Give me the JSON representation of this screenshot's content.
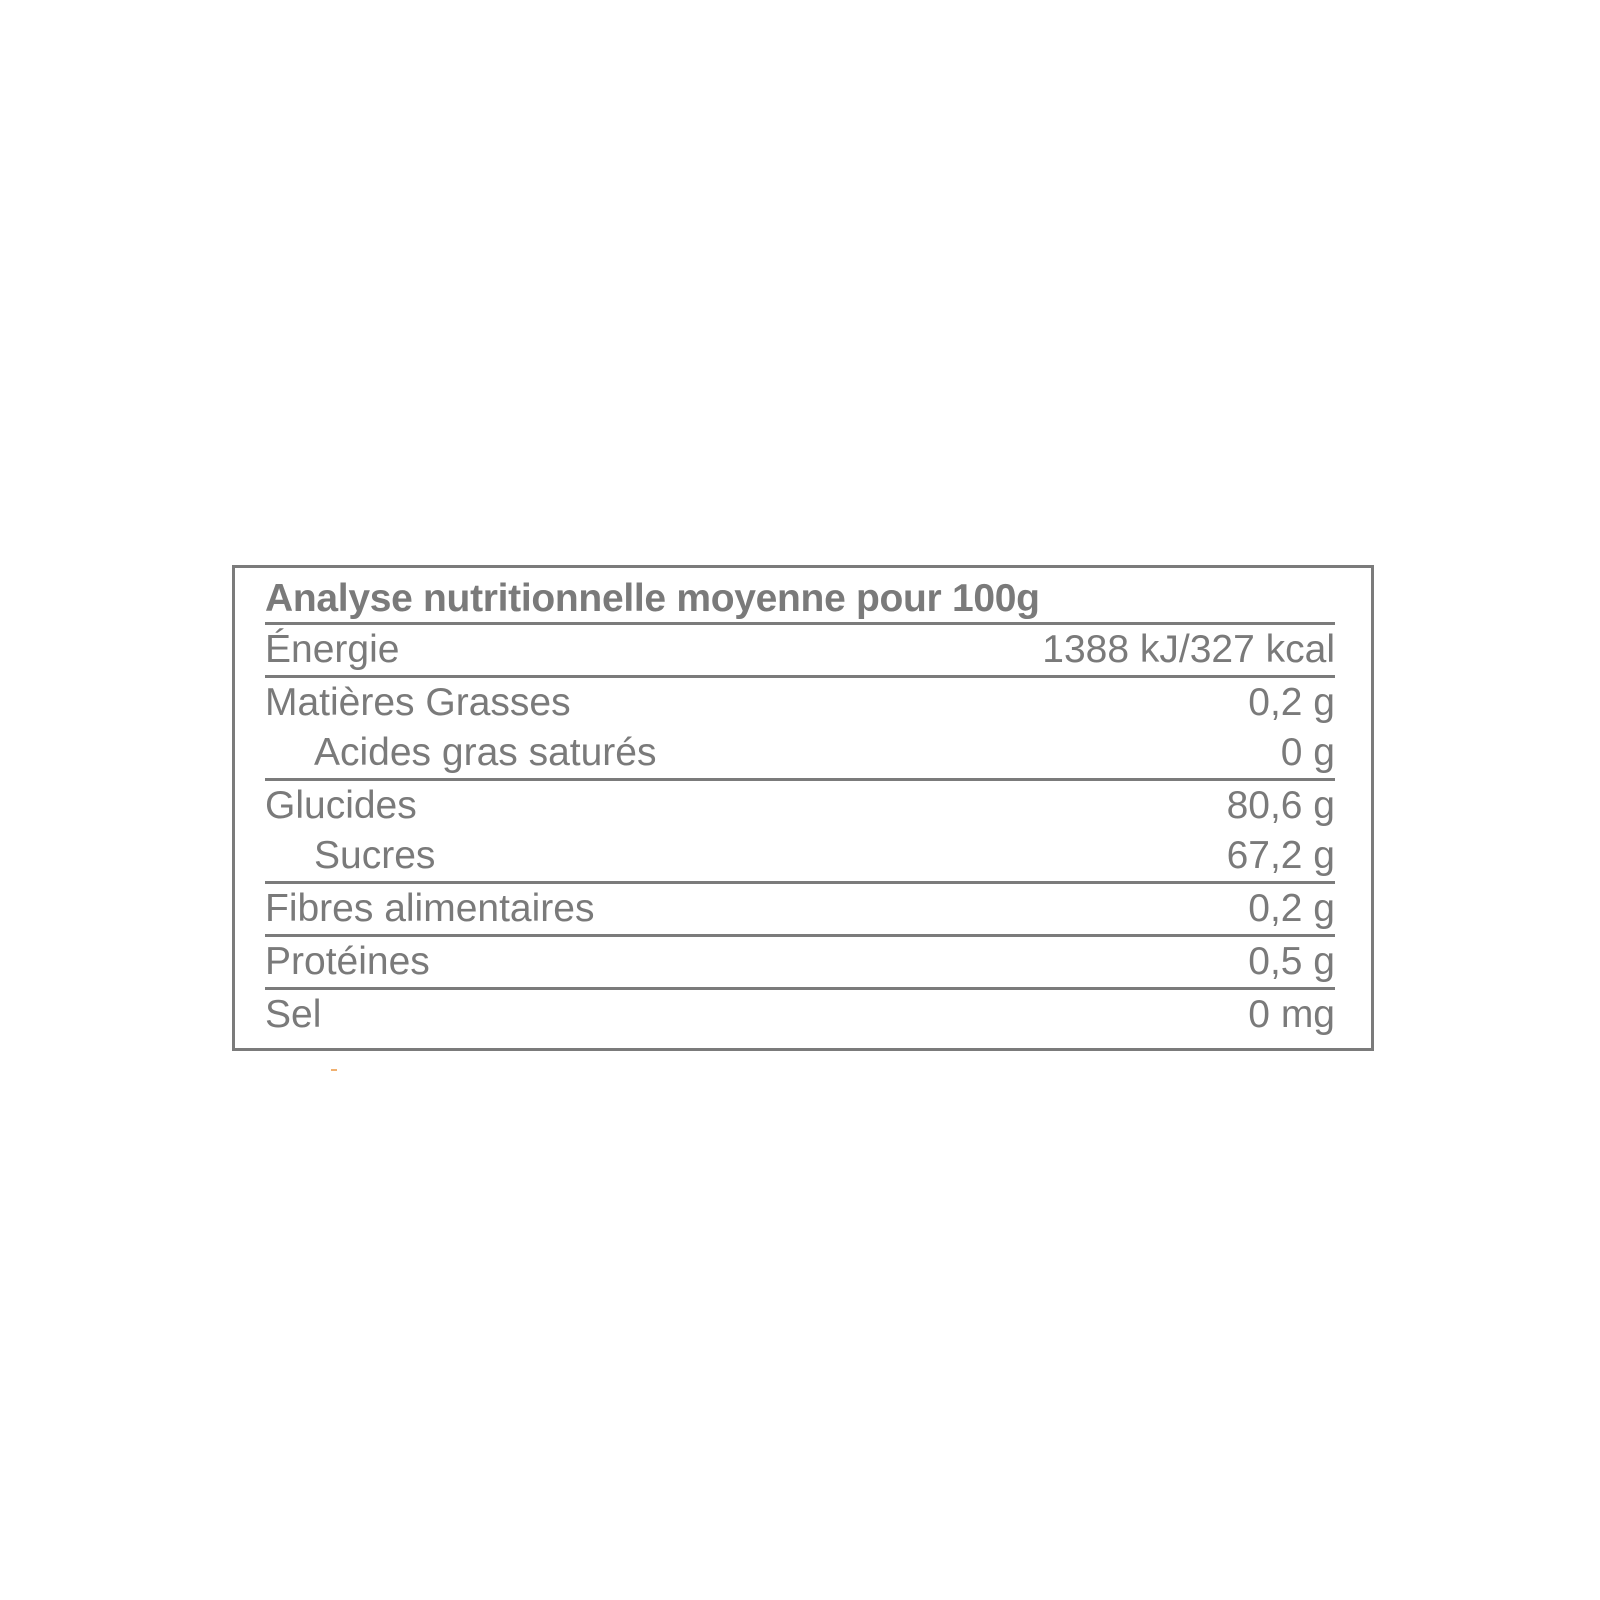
{
  "table": {
    "title": "Analyse nutritionnelle moyenne pour 100g",
    "rows": [
      {
        "label": "Énergie",
        "value": "1388 kJ/327 kcal"
      },
      {
        "label": "Matières Grasses",
        "value": "0,2 g"
      },
      {
        "label": "Acides gras saturés",
        "value": "0 g"
      },
      {
        "label": "Glucides",
        "value": "80,6 g"
      },
      {
        "label": "Sucres",
        "value": "67,2 g"
      },
      {
        "label": "Fibres alimentaires",
        "value": "0,2 g"
      },
      {
        "label": "Protéines",
        "value": "0,5 g"
      },
      {
        "label": "Sel",
        "value": "0 mg"
      }
    ]
  },
  "colors": {
    "text": "#7a7a7a",
    "border": "#7b7b7b",
    "background": "#ffffff"
  }
}
